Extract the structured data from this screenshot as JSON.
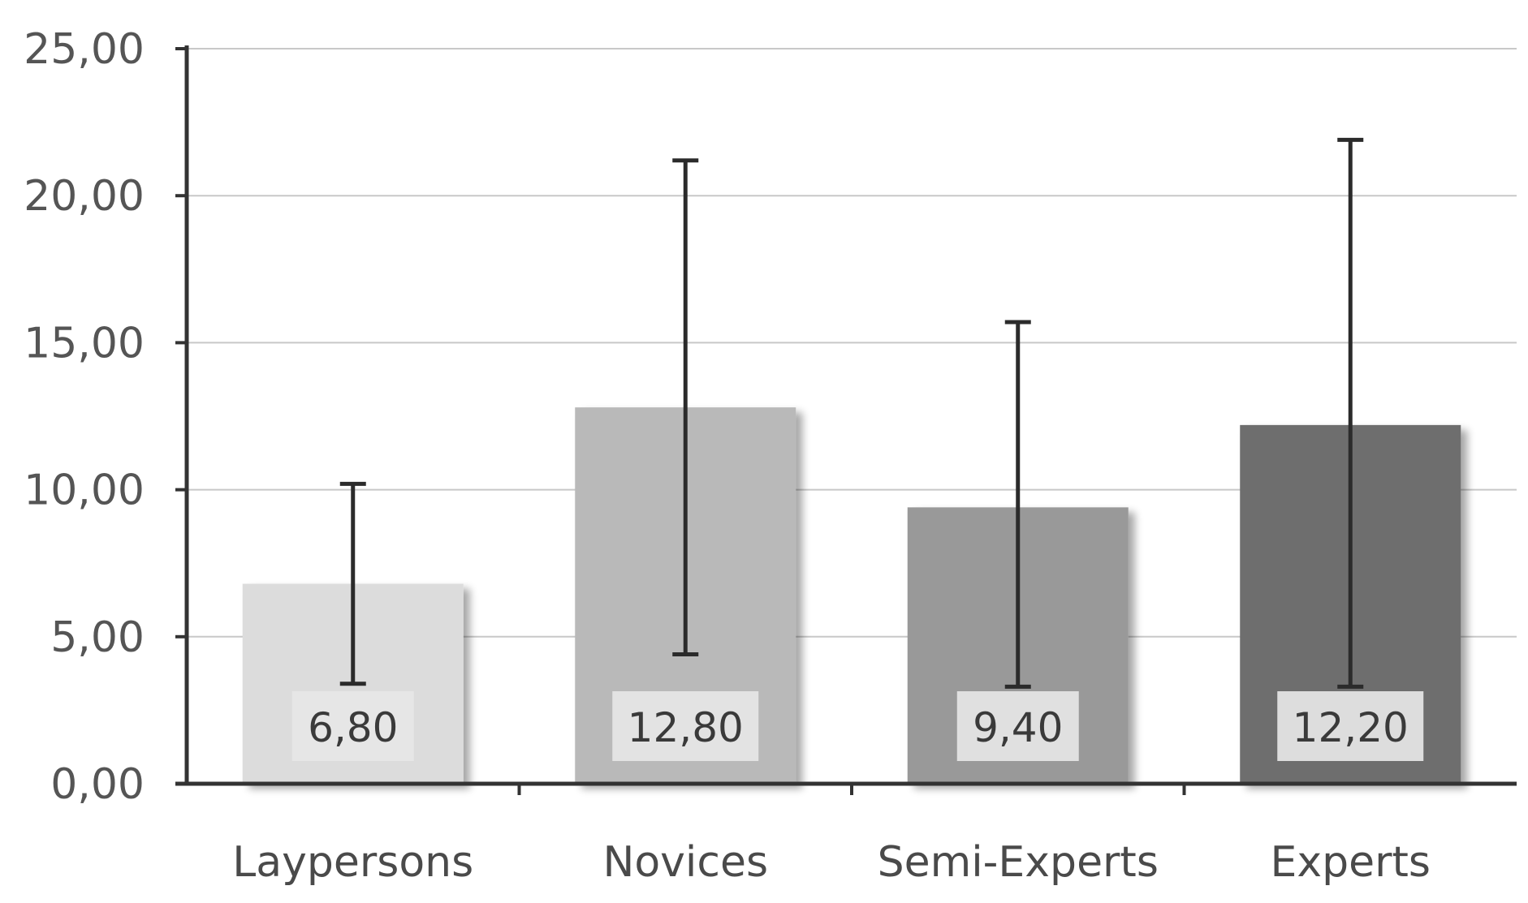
{
  "chart_data": {
    "type": "bar",
    "title": "",
    "xlabel": "",
    "ylabel": "",
    "categories": [
      "Laypersons",
      "Novices",
      "Semi-Experts",
      "Experts"
    ],
    "values": [
      6.8,
      12.8,
      9.4,
      12.2
    ],
    "value_labels": [
      "6,80",
      "12,80",
      "9,40",
      "12,20"
    ],
    "error_bars": [
      {
        "low": 3.4,
        "high": 10.2
      },
      {
        "low": 4.4,
        "high": 21.2
      },
      {
        "low": 3.3,
        "high": 15.7
      },
      {
        "low": 3.3,
        "high": 21.9
      }
    ],
    "ylim": [
      0,
      25
    ],
    "yticks": [
      0,
      5,
      10,
      15,
      20,
      25
    ],
    "ytick_labels": [
      "0,00",
      "5,00",
      "10,00",
      "15,00",
      "20,00",
      "25,00"
    ],
    "grid": true,
    "legend": "none",
    "colors": {
      "bars": [
        "#dcdcdc",
        "#b9b9b9",
        "#999999",
        "#6e6e6e"
      ],
      "gridline": "#c8c8c8",
      "axis": "#333333",
      "error_bar": "#2b2b2b",
      "label_box": "#e6e6e6"
    }
  }
}
